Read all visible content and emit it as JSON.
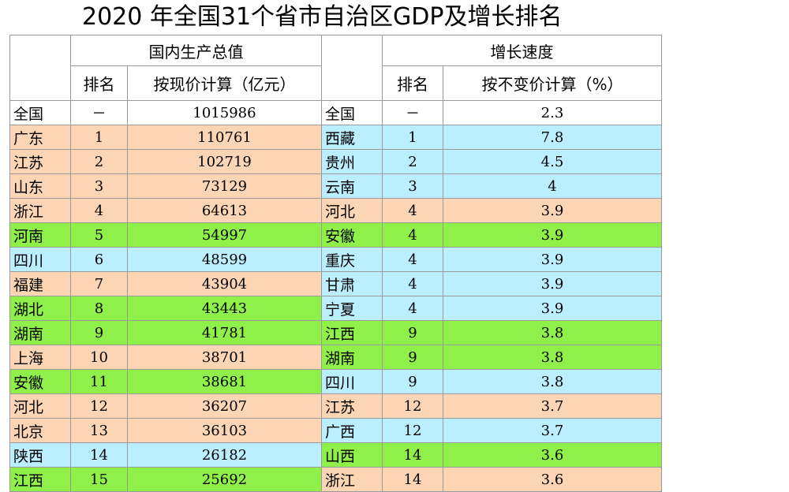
{
  "title": "2020 年全国31个省市自治区GDP及增长排名",
  "header": {
    "gdp_group": "国内生产总值",
    "growth_group": "增长速度",
    "rank": "排名",
    "gdp_col": "按现价计算（亿元）",
    "growth_col": "按不变价计算（%）"
  },
  "colors": {
    "orange": "#fcd5b4",
    "blue": "#bbeeff",
    "green": "#8ff04a",
    "white": "#ffffff"
  },
  "rows": [
    {
      "left_name": "全国",
      "left_rank": "－",
      "gdp": "1015986",
      "left_color": "white",
      "right_name": "全国",
      "right_rank": "－",
      "growth": "2.3",
      "right_color": "white"
    },
    {
      "left_name": "广东",
      "left_rank": "1",
      "gdp": "110761",
      "left_color": "orange",
      "right_name": "西藏",
      "right_rank": "1",
      "growth": "7.8",
      "right_color": "blue"
    },
    {
      "left_name": "江苏",
      "left_rank": "2",
      "gdp": "102719",
      "left_color": "orange",
      "right_name": "贵州",
      "right_rank": "2",
      "growth": "4.5",
      "right_color": "blue"
    },
    {
      "left_name": "山东",
      "left_rank": "3",
      "gdp": "73129",
      "left_color": "orange",
      "right_name": "云南",
      "right_rank": "3",
      "growth": "4",
      "right_color": "blue"
    },
    {
      "left_name": "浙江",
      "left_rank": "4",
      "gdp": "64613",
      "left_color": "orange",
      "right_name": "河北",
      "right_rank": "4",
      "growth": "3.9",
      "right_color": "orange"
    },
    {
      "left_name": "河南",
      "left_rank": "5",
      "gdp": "54997",
      "left_color": "green",
      "right_name": "安徽",
      "right_rank": "4",
      "growth": "3.9",
      "right_color": "green"
    },
    {
      "left_name": "四川",
      "left_rank": "6",
      "gdp": "48599",
      "left_color": "blue",
      "right_name": "重庆",
      "right_rank": "4",
      "growth": "3.9",
      "right_color": "blue"
    },
    {
      "left_name": "福建",
      "left_rank": "7",
      "gdp": "43904",
      "left_color": "orange",
      "right_name": "甘肃",
      "right_rank": "4",
      "growth": "3.9",
      "right_color": "blue"
    },
    {
      "left_name": "湖北",
      "left_rank": "8",
      "gdp": "43443",
      "left_color": "green",
      "right_name": "宁夏",
      "right_rank": "4",
      "growth": "3.9",
      "right_color": "blue"
    },
    {
      "left_name": "湖南",
      "left_rank": "9",
      "gdp": "41781",
      "left_color": "green",
      "right_name": "江西",
      "right_rank": "9",
      "growth": "3.8",
      "right_color": "green"
    },
    {
      "left_name": "上海",
      "left_rank": "10",
      "gdp": "38701",
      "left_color": "orange",
      "right_name": "湖南",
      "right_rank": "9",
      "growth": "3.8",
      "right_color": "green"
    },
    {
      "left_name": "安徽",
      "left_rank": "11",
      "gdp": "38681",
      "left_color": "green",
      "right_name": "四川",
      "right_rank": "9",
      "growth": "3.8",
      "right_color": "blue"
    },
    {
      "left_name": "河北",
      "left_rank": "12",
      "gdp": "36207",
      "left_color": "orange",
      "right_name": "江苏",
      "right_rank": "12",
      "growth": "3.7",
      "right_color": "orange"
    },
    {
      "left_name": "北京",
      "left_rank": "13",
      "gdp": "36103",
      "left_color": "orange",
      "right_name": "广西",
      "right_rank": "12",
      "growth": "3.7",
      "right_color": "blue"
    },
    {
      "left_name": "陕西",
      "left_rank": "14",
      "gdp": "26182",
      "left_color": "blue",
      "right_name": "山西",
      "right_rank": "14",
      "growth": "3.6",
      "right_color": "green"
    },
    {
      "left_name": "江西",
      "left_rank": "15",
      "gdp": "25692",
      "left_color": "green",
      "right_name": "浙江",
      "right_rank": "14",
      "growth": "3.6",
      "right_color": "orange"
    }
  ]
}
